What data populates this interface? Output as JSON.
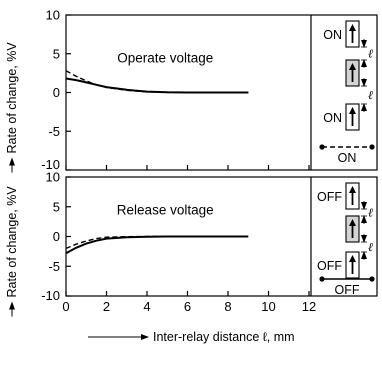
{
  "chart_data": [
    {
      "type": "line",
      "ylabel": "Rate of change, %V",
      "annotation": "Operate voltage",
      "xlim": [
        0,
        12
      ],
      "ylim": [
        -10,
        10
      ],
      "xticks": [
        "0",
        "2",
        "4",
        "6",
        "8",
        "10",
        "12"
      ],
      "yticks": [
        "10",
        "5",
        "0",
        "-5",
        "-10"
      ],
      "grid": false,
      "series": [
        {
          "style": "solid",
          "x": [
            0,
            0.5,
            1,
            1.5,
            2,
            3,
            4,
            5,
            6,
            7,
            8,
            9
          ],
          "y": [
            1.8,
            1.6,
            1.3,
            1.0,
            0.7,
            0.35,
            0.12,
            0.02,
            0,
            0,
            0,
            0
          ]
        },
        {
          "style": "dashed",
          "x": [
            0,
            0.5,
            1,
            1.5,
            2,
            3,
            4,
            5,
            6,
            7,
            8,
            9
          ],
          "y": [
            2.8,
            2.1,
            1.5,
            1.0,
            0.65,
            0.28,
            0.08,
            0.01,
            0,
            0,
            0,
            0
          ]
        }
      ],
      "legend": {
        "caption": "ON",
        "relays": [
          {
            "label": "ON",
            "shaded": false
          },
          {
            "label": "",
            "shaded": true
          },
          {
            "label": "ON",
            "shaded": false
          }
        ],
        "gap_symbol": "ℓ",
        "line_style": "dashed"
      }
    },
    {
      "type": "line",
      "ylabel": "Rate of change, %V",
      "annotation": "Release voltage",
      "xlabel": "Inter-relay distance ℓ, mm",
      "xlim": [
        0,
        12
      ],
      "ylim": [
        -10,
        10
      ],
      "xticks": [
        "0",
        "2",
        "4",
        "6",
        "8",
        "10",
        "12"
      ],
      "yticks": [
        "10",
        "5",
        "0",
        "-5",
        "-10"
      ],
      "grid": false,
      "series": [
        {
          "style": "solid",
          "x": [
            0,
            0.5,
            1,
            1.5,
            2,
            3,
            4,
            5,
            6,
            7,
            8,
            9
          ],
          "y": [
            -2.8,
            -1.9,
            -1.2,
            -0.7,
            -0.35,
            -0.12,
            -0.04,
            0,
            0,
            0,
            0,
            0
          ]
        },
        {
          "style": "dashed",
          "x": [
            0,
            0.5,
            1,
            1.5,
            2,
            3,
            4,
            5,
            6,
            7,
            8,
            9
          ],
          "y": [
            -2.0,
            -1.3,
            -0.75,
            -0.35,
            -0.12,
            -0.03,
            0,
            0,
            0,
            0,
            0,
            0
          ]
        }
      ],
      "legend": {
        "caption": "OFF",
        "relays": [
          {
            "label": "OFF",
            "shaded": false
          },
          {
            "label": "",
            "shaded": true
          },
          {
            "label": "OFF",
            "shaded": false
          }
        ],
        "gap_symbol": "ℓ",
        "line_style": "solid"
      }
    }
  ]
}
